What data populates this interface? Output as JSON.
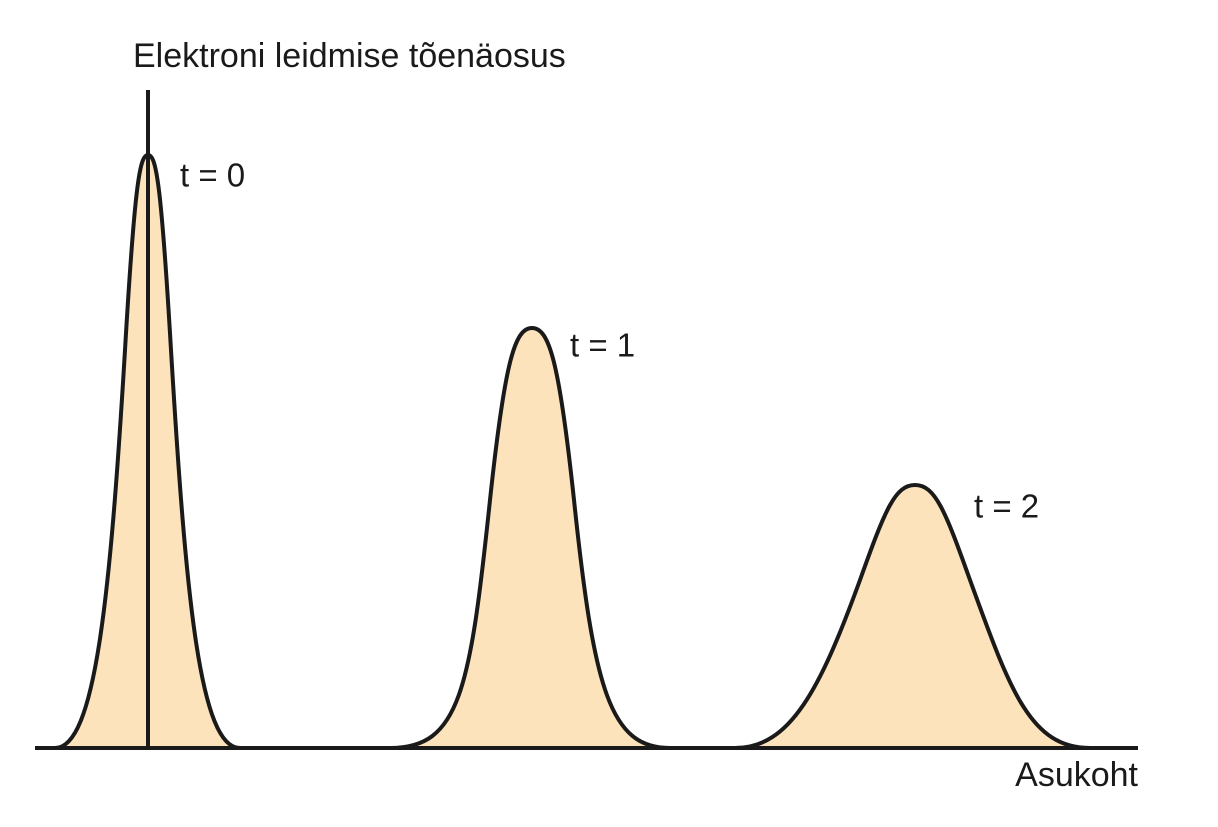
{
  "y_axis_label": "Elektroni leidmise tõenäosus",
  "x_axis_label": "Asukoht",
  "curves": [
    {
      "label": "t = 0"
    },
    {
      "label": "t = 1"
    },
    {
      "label": "t = 2"
    }
  ]
}
